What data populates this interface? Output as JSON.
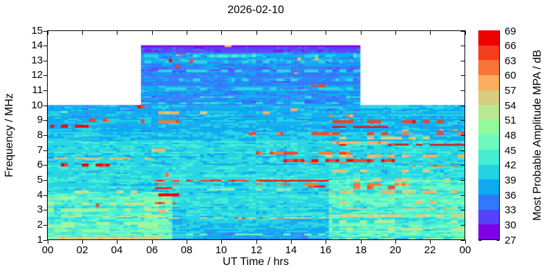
{
  "title": "2026-02-10",
  "plot": {
    "x_label": "UT Time / hrs",
    "y_label": "Frequency / MHz",
    "x_tick_labels": [
      "00",
      "02",
      "04",
      "06",
      "08",
      "10",
      "12",
      "14",
      "16",
      "18",
      "20",
      "22",
      "00"
    ],
    "x_tick_hours": [
      0,
      2,
      4,
      6,
      8,
      10,
      12,
      14,
      16,
      18,
      20,
      22,
      24
    ],
    "y_tick_values": [
      1,
      2,
      3,
      4,
      5,
      6,
      7,
      8,
      9,
      10,
      11,
      12,
      13,
      14,
      15
    ]
  },
  "colorbar": {
    "label": "Most Probable Amplitude MPA / dB",
    "tick_values": [
      27,
      30,
      33,
      36,
      39,
      42,
      45,
      48,
      51,
      54,
      57,
      60,
      63,
      66,
      69
    ],
    "colors_low_to_high": [
      "#7d00e8",
      "#5542fc",
      "#3179fa",
      "#0daaf0",
      "#22d4e3",
      "#45edd3",
      "#6efabe",
      "#93fa9b",
      "#bbe992",
      "#d8cd80",
      "#fcae5e",
      "#f87438",
      "#f63d1e",
      "#ee0000"
    ]
  },
  "chart_data": {
    "type": "heatmap",
    "title": "2026-02-10",
    "xlabel": "UT Time / hrs",
    "ylabel": "Frequency / MHz",
    "value_label": "Most Probable Amplitude MPA / dB",
    "x_range_hours": [
      0,
      24
    ],
    "y_range_mhz": [
      1,
      15
    ],
    "value_range_db": [
      27,
      69
    ],
    "value_bin_db": 3,
    "grid": {
      "t_bins": 120,
      "f_bins": 140
    },
    "seed": 1337,
    "coverage": [
      {
        "f": [
          1,
          10
        ],
        "t": [
          0,
          24
        ]
      },
      {
        "f": [
          10,
          14
        ],
        "t": [
          5.5,
          18
        ]
      }
    ],
    "regions": [
      {
        "f": [
          1,
          10
        ],
        "t": [
          0,
          24
        ],
        "base": 41,
        "noise": 2.2
      },
      {
        "f": [
          8.25,
          10
        ],
        "t": [
          0,
          24
        ],
        "base": 38.2,
        "noise": 1.8
      },
      {
        "f": [
          7.6,
          8.25
        ],
        "t": [
          0,
          24
        ],
        "base": 40,
        "noise": 2.0
      },
      {
        "f": [
          1,
          4.2
        ],
        "t": [
          0,
          6.6
        ],
        "base": 44,
        "noise": 3.0
      },
      {
        "f": [
          1,
          1.25
        ],
        "t": [
          0,
          6.8
        ],
        "base": 49,
        "noise": 3.5
      },
      {
        "f": [
          1,
          4.2
        ],
        "t": [
          5.7,
          7.3
        ],
        "base": 46,
        "noise": 4.0
      },
      {
        "f": [
          1,
          2.15
        ],
        "t": [
          7.3,
          16.2
        ],
        "base": 39,
        "noise": 1.6
      },
      {
        "f": [
          1,
          1.55
        ],
        "t": [
          9.0,
          15.0
        ],
        "base": 36.8,
        "noise": 1.5
      },
      {
        "f": [
          1,
          5.0
        ],
        "t": [
          16.3,
          24
        ],
        "base": 44.5,
        "noise": 3.2
      },
      {
        "f": [
          1,
          1.2
        ],
        "t": [
          16.3,
          24
        ],
        "base": 41,
        "noise": 2.2
      },
      {
        "f": [
          1,
          1.1
        ],
        "t": [
          7.3,
          16.3
        ],
        "base": 36,
        "noise": 1.2
      },
      {
        "f": [
          9.3,
          10
        ],
        "t": [
          18,
          24
        ],
        "base": 39,
        "noise": 1.8
      },
      {
        "f": [
          10,
          14
        ],
        "t": [
          5.5,
          18
        ],
        "base": 36,
        "noise": 2.0
      },
      {
        "f": [
          11.4,
          12.6
        ],
        "t": [
          5.5,
          18
        ],
        "base": 34.8,
        "noise": 1.8
      },
      {
        "f": [
          13.5,
          14
        ],
        "t": [
          5.5,
          18
        ],
        "base": 31.5,
        "noise": 1.6
      },
      {
        "f": [
          13.9,
          14
        ],
        "t": [
          5.5,
          18
        ],
        "base": 28.3,
        "noise": 1.0
      }
    ],
    "streaks": [
      {
        "f": 13.3,
        "t": [
          5.5,
          18
        ],
        "v": 41,
        "d": 0.45
      },
      {
        "f": 12.9,
        "t": [
          5.5,
          18
        ],
        "v": 40,
        "d": 0.4
      },
      {
        "f": 12.3,
        "t": [
          6,
          18
        ],
        "v": 40.5,
        "d": 0.35
      },
      {
        "f": 11.7,
        "t": [
          5.5,
          18
        ],
        "v": 40,
        "d": 0.4
      },
      {
        "f": 11.1,
        "t": [
          6,
          18
        ],
        "v": 40.5,
        "d": 0.35
      },
      {
        "f": 10.55,
        "t": [
          5.5,
          18
        ],
        "v": 41,
        "d": 0.4
      },
      {
        "f": 10.15,
        "t": [
          5.5,
          18
        ],
        "v": 42,
        "d": 0.5
      },
      {
        "f": 13.05,
        "t": [
          5.5,
          18
        ],
        "v": 40,
        "d": 0.3
      },
      {
        "f": 13.0,
        "t": [
          7,
          9.6
        ],
        "v": 66,
        "d": 0.25,
        "g": 1
      },
      {
        "f": 12.6,
        "t": [
          7,
          8.3
        ],
        "v": 64,
        "d": 0.2,
        "g": 1
      },
      {
        "f": 13.35,
        "t": [
          7.5,
          9
        ],
        "v": 60,
        "d": 0.2,
        "g": 1
      },
      {
        "f": 11.3,
        "t": [
          13.8,
          16.2
        ],
        "v": 65,
        "d": 0.25,
        "g": 1
      },
      {
        "f": 12.15,
        "t": [
          14,
          16
        ],
        "v": 60,
        "d": 0.2,
        "g": 1
      },
      {
        "f": 13.1,
        "t": [
          14.3,
          16.5
        ],
        "v": 58,
        "d": 0.25,
        "g": 1
      },
      {
        "f": 13.95,
        "t": [
          10.3,
          11
        ],
        "v": 58,
        "d": 0.5,
        "g": 1
      },
      {
        "f": 12.75,
        "t": [
          10.5,
          13.5
        ],
        "v": 56,
        "d": 0.2,
        "g": 1
      },
      {
        "f": 9.9,
        "t": [
          4.8,
          5.6
        ],
        "v": 66,
        "d": 0.8
      },
      {
        "f": 8.6,
        "t": [
          0.2,
          2.6
        ],
        "v": 67,
        "d": 0.4
      },
      {
        "f": 9.0,
        "t": [
          1.2,
          4.2
        ],
        "v": 64,
        "d": 0.3
      },
      {
        "f": 8.9,
        "t": [
          5.5,
          9.5
        ],
        "v": 63,
        "d": 0.25
      },
      {
        "f": 9.5,
        "t": [
          6,
          13
        ],
        "v": 57,
        "d": 0.3
      },
      {
        "f": 9.55,
        "t": [
          0,
          1.4
        ],
        "v": 50,
        "d": 0.6
      },
      {
        "f": 8.1,
        "t": [
          11,
          24
        ],
        "v": 64,
        "d": 0.3
      },
      {
        "f": 8.55,
        "t": [
          16.4,
          19.6
        ],
        "v": 68,
        "d": 0.75,
        "w": 0.16
      },
      {
        "f": 8.9,
        "t": [
          16.4,
          23
        ],
        "v": 65,
        "d": 0.45
      },
      {
        "f": 9.3,
        "t": [
          16.2,
          18
        ],
        "v": 61,
        "d": 0.3
      },
      {
        "f": 8.35,
        "t": [
          20,
          24
        ],
        "v": 60,
        "d": 0.3
      },
      {
        "f": 9.7,
        "t": [
          13,
          16
        ],
        "v": 58,
        "d": 0.25
      },
      {
        "f": 6.0,
        "t": [
          0,
          4.6
        ],
        "v": 67,
        "d": 0.35
      },
      {
        "f": 6.45,
        "t": [
          0,
          6.2
        ],
        "v": 57,
        "d": 0.5
      },
      {
        "f": 7.35,
        "t": [
          15.6,
          24
        ],
        "v": 67,
        "d": 0.5
      },
      {
        "f": 7.5,
        "t": [
          16,
          20.5
        ],
        "v": 59,
        "d": 0.4
      },
      {
        "f": 6.3,
        "t": [
          13,
          20
        ],
        "v": 66,
        "d": 0.5
      },
      {
        "f": 6.15,
        "t": [
          14,
          17.2
        ],
        "v": 61,
        "d": 0.35
      },
      {
        "f": 6.8,
        "t": [
          12,
          17.5
        ],
        "v": 63,
        "d": 0.4
      },
      {
        "f": 6.6,
        "t": [
          16,
          24
        ],
        "v": 58,
        "d": 0.35
      },
      {
        "f": 5.95,
        "t": [
          21,
          24
        ],
        "v": 62,
        "d": 0.3
      },
      {
        "f": 7.0,
        "t": [
          5.8,
          7.2
        ],
        "v": 58,
        "d": 0.5
      },
      {
        "f": 7.8,
        "t": [
          16,
          22
        ],
        "v": 56,
        "d": 0.3
      },
      {
        "f": 4.95,
        "t": [
          6.3,
          12.5
        ],
        "v": 66,
        "d": 0.5
      },
      {
        "f": 4.95,
        "t": [
          12.5,
          16.3
        ],
        "v": 68,
        "d": 0.95,
        "g": 4
      },
      {
        "f": 4.75,
        "t": [
          6.3,
          16.3
        ],
        "v": 62,
        "d": 0.35
      },
      {
        "f": 4.45,
        "w": 0.18,
        "t": [
          6.2,
          7.3
        ],
        "v": 69,
        "d": 0.95,
        "g": 4
      },
      {
        "f": 4.0,
        "w": 0.15,
        "t": [
          6.5,
          7.6
        ],
        "v": 69,
        "d": 0.85,
        "g": 3
      },
      {
        "f": 5.35,
        "w": 0.2,
        "t": [
          5.8,
          7.0
        ],
        "v": 60,
        "d": 0.6
      },
      {
        "f": 4.55,
        "t": [
          15,
          16.3
        ],
        "v": 66,
        "d": 0.5
      },
      {
        "f": 4.5,
        "t": [
          17.5,
          21.5
        ],
        "v": 63,
        "d": 0.3
      },
      {
        "f": 4.7,
        "t": [
          14.5,
          21
        ],
        "v": 61,
        "d": 0.4
      },
      {
        "f": 4.2,
        "t": [
          0.5,
          6.5
        ],
        "v": 54,
        "d": 0.45
      },
      {
        "f": 4.2,
        "t": [
          16.3,
          24
        ],
        "v": 57,
        "d": 0.45
      },
      {
        "f": 5.6,
        "t": [
          16.5,
          22
        ],
        "v": 56,
        "d": 0.3
      },
      {
        "f": 5.0,
        "t": [
          16.5,
          24
        ],
        "v": 57,
        "d": 0.35
      },
      {
        "f": 4.35,
        "t": [
          8,
          14
        ],
        "v": 52,
        "d": 0.3
      },
      {
        "f": 3.45,
        "w": 0.14,
        "t": [
          6.3,
          7.4
        ],
        "v": 66,
        "d": 0.5
      },
      {
        "f": 3.0,
        "t": [
          15.8,
          17.2
        ],
        "v": 65,
        "d": 0.4
      },
      {
        "f": 2.45,
        "t": [
          7,
          16
        ],
        "v": 55,
        "d": 0.5
      },
      {
        "f": 2.45,
        "t": [
          9,
          15
        ],
        "v": 64,
        "d": 0.1,
        "g": 1
      },
      {
        "f": 2.55,
        "t": [
          0,
          7
        ],
        "v": 53,
        "d": 0.7,
        "w": 0.14
      },
      {
        "f": 3.0,
        "t": [
          0,
          7
        ],
        "v": 51,
        "d": 0.6
      },
      {
        "f": 3.4,
        "t": [
          0,
          6.6
        ],
        "v": 53,
        "d": 0.55
      },
      {
        "f": 3.75,
        "t": [
          0,
          6
        ],
        "v": 50,
        "d": 0.4
      },
      {
        "f": 2.1,
        "t": [
          0,
          6.6
        ],
        "v": 50,
        "d": 0.5
      },
      {
        "f": 2.6,
        "t": [
          16.3,
          24
        ],
        "v": 55,
        "d": 0.6
      },
      {
        "f": 3.05,
        "t": [
          16.3,
          24
        ],
        "v": 56,
        "d": 0.45
      },
      {
        "f": 3.5,
        "t": [
          16.5,
          24
        ],
        "v": 57,
        "d": 0.4
      },
      {
        "f": 2.2,
        "t": [
          16.3,
          24
        ],
        "v": 52,
        "d": 0.45
      },
      {
        "f": 2.9,
        "t": [
          5.7,
          7.3
        ],
        "v": 58,
        "d": 0.6
      },
      {
        "f": 3.3,
        "t": [
          1,
          3
        ],
        "v": 66,
        "d": 0.2,
        "g": 1
      },
      {
        "f": 1.08,
        "w": 0.14,
        "t": [
          0,
          6.8
        ],
        "v": 56,
        "d": 0.8,
        "g": 3
      },
      {
        "f": 1.35,
        "t": [
          0,
          24
        ],
        "v": 48,
        "d": 0.4
      },
      {
        "f": 1.05,
        "t": [
          16.3,
          24
        ],
        "v": 53,
        "d": 0.5
      },
      {
        "f": 1.7,
        "t": [
          16.3,
          24
        ],
        "v": 52,
        "d": 0.4
      },
      {
        "f": 1.9,
        "t": [
          0,
          6.6
        ],
        "v": 51,
        "d": 0.4
      },
      {
        "f": 1.6,
        "t": [
          0,
          6.6
        ],
        "v": 49,
        "d": 0.4
      }
    ]
  }
}
